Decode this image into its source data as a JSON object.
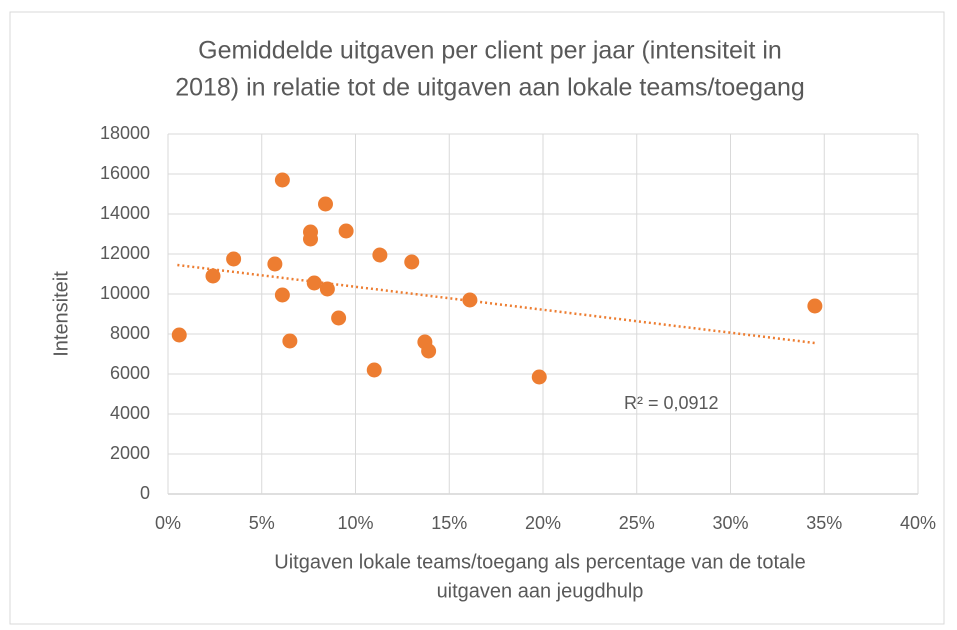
{
  "chart_data": {
    "type": "scatter",
    "title": [
      "Gemiddelde  uitgaven per client per jaar (intensiteit in",
      "2018) in relatie tot de uitgaven aan lokale teams/toegang"
    ],
    "x_label": [
      "Uitgaven lokale teams/toegang als percentage van de totale",
      "uitgaven aan jeugdhulp"
    ],
    "y_label": "Intensiteit",
    "annotation": "R² = 0,0912",
    "color": "#ed7d31",
    "x": [
      0.6,
      2.4,
      3.5,
      5.7,
      6.1,
      6.1,
      6.5,
      7.6,
      7.6,
      7.8,
      8.4,
      8.5,
      9.1,
      9.5,
      11.0,
      11.3,
      13.0,
      13.7,
      13.9,
      16.1,
      19.8,
      34.5
    ],
    "values": [
      7950,
      10900,
      11750,
      11500,
      15700,
      9950,
      7650,
      13100,
      12750,
      10550,
      14500,
      10250,
      8800,
      13150,
      6200,
      11950,
      11600,
      7600,
      7150,
      9700,
      5850,
      9400
    ],
    "trendline": {
      "x": [
        0.5,
        34.5
      ],
      "y": [
        11450,
        7550
      ]
    },
    "xlim": [
      0,
      40
    ],
    "xticks": [
      {
        "value": 0,
        "label": "0%"
      },
      {
        "value": 5,
        "label": "5%"
      },
      {
        "value": 10,
        "label": "10%"
      },
      {
        "value": 15,
        "label": "15%"
      },
      {
        "value": 20,
        "label": "20%"
      },
      {
        "value": 25,
        "label": "25%"
      },
      {
        "value": 30,
        "label": "30%"
      },
      {
        "value": 35,
        "label": "35%"
      },
      {
        "value": 40,
        "label": "40%"
      }
    ],
    "ylim": [
      0,
      18000
    ],
    "yticks": [
      0,
      2000,
      4000,
      6000,
      8000,
      10000,
      12000,
      14000,
      16000,
      18000
    ],
    "grid": true
  }
}
